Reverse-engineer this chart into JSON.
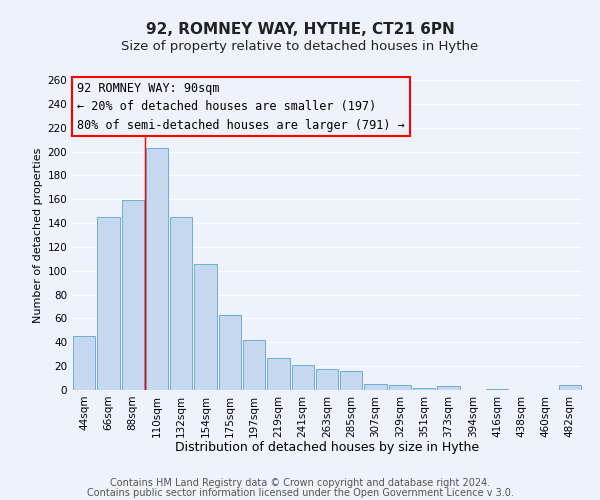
{
  "title": "92, ROMNEY WAY, HYTHE, CT21 6PN",
  "subtitle": "Size of property relative to detached houses in Hythe",
  "xlabel": "Distribution of detached houses by size in Hythe",
  "ylabel": "Number of detached properties",
  "categories": [
    "44sqm",
    "66sqm",
    "88sqm",
    "110sqm",
    "132sqm",
    "154sqm",
    "175sqm",
    "197sqm",
    "219sqm",
    "241sqm",
    "263sqm",
    "285sqm",
    "307sqm",
    "329sqm",
    "351sqm",
    "373sqm",
    "394sqm",
    "416sqm",
    "438sqm",
    "460sqm",
    "482sqm"
  ],
  "values": [
    45,
    145,
    159,
    203,
    145,
    106,
    63,
    42,
    27,
    21,
    18,
    16,
    5,
    4,
    2,
    3,
    0,
    1,
    0,
    0,
    4
  ],
  "bar_color": "#c5d8f0",
  "bar_edge_color": "#6baed6",
  "bar_width": 0.92,
  "ylim": [
    0,
    260
  ],
  "yticks": [
    0,
    20,
    40,
    60,
    80,
    100,
    120,
    140,
    160,
    180,
    200,
    220,
    240,
    260
  ],
  "red_line_x": 2.5,
  "annotation_title": "92 ROMNEY WAY: 90sqm",
  "annotation_line1": "← 20% of detached houses are smaller (197)",
  "annotation_line2": "80% of semi-detached houses are larger (791) →",
  "footer1": "Contains HM Land Registry data © Crown copyright and database right 2024.",
  "footer2": "Contains public sector information licensed under the Open Government Licence v 3.0.",
  "background_color": "#eef2fb",
  "plot_bg_color": "#eef2fb",
  "grid_color": "#ffffff",
  "title_fontsize": 11,
  "subtitle_fontsize": 9.5,
  "xlabel_fontsize": 9,
  "ylabel_fontsize": 8,
  "tick_fontsize": 7.5,
  "footer_fontsize": 7,
  "ann_fontsize": 8.5
}
